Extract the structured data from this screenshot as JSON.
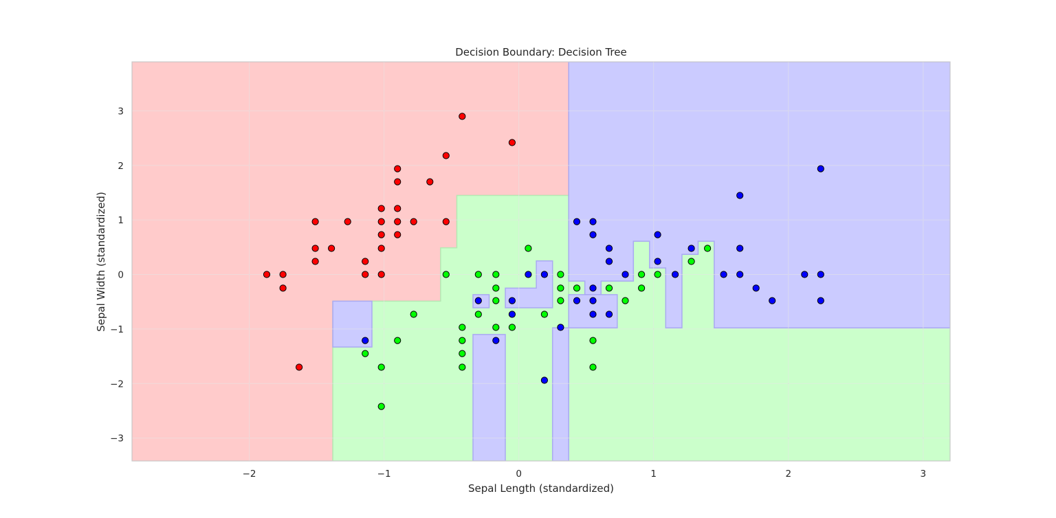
{
  "chart_data": {
    "type": "scatter",
    "title": "Decision Boundary: Decision Tree",
    "xlabel": "Sepal Length (standardized)",
    "ylabel": "Sepal Width (standardized)",
    "xlim": [
      -2.87,
      3.2
    ],
    "ylim": [
      -3.42,
      3.9
    ],
    "xticks": [
      -2,
      -1,
      0,
      1,
      2,
      3
    ],
    "yticks": [
      -3,
      -2,
      -1,
      0,
      1,
      2,
      3
    ],
    "xtick_labels": [
      "−2",
      "−1",
      "0",
      "1",
      "2",
      "3"
    ],
    "ytick_labels": [
      "−3",
      "−2",
      "−1",
      "0",
      "1",
      "2",
      "3"
    ],
    "grid": true,
    "colors": {
      "class0_region": "#ffcbcb",
      "class1_region": "#cbffcb",
      "class2_region": "#cbcbff",
      "class0_point": "#ff0000",
      "class1_point": "#00ff00",
      "class2_point": "#0000ff"
    },
    "regions": [
      {
        "class": 0,
        "polygon": [
          [
            -2.87,
            3.9
          ],
          [
            0.37,
            3.9
          ],
          [
            0.37,
            1.45
          ],
          [
            -0.46,
            1.45
          ],
          [
            -0.46,
            0.49
          ],
          [
            -0.58,
            0.49
          ],
          [
            -0.58,
            -0.49
          ],
          [
            -1.38,
            -0.49
          ],
          [
            -1.38,
            -3.42
          ],
          [
            -2.87,
            -3.42
          ]
        ]
      },
      {
        "class": 1,
        "polygon": [
          [
            -1.38,
            -3.42
          ],
          [
            -1.38,
            -0.49
          ],
          [
            -0.58,
            -0.49
          ],
          [
            -0.58,
            0.49
          ],
          [
            -0.46,
            0.49
          ],
          [
            -0.46,
            1.45
          ],
          [
            0.37,
            1.45
          ],
          [
            0.37,
            -3.42
          ]
        ]
      },
      {
        "class": 1,
        "polygon": [
          [
            0.37,
            -3.42
          ],
          [
            3.2,
            -3.42
          ],
          [
            3.2,
            -0.98
          ],
          [
            1.45,
            -0.98
          ],
          [
            1.45,
            0.61
          ],
          [
            1.33,
            0.61
          ],
          [
            1.33,
            0.37
          ],
          [
            1.21,
            0.37
          ],
          [
            1.21,
            -0.98
          ],
          [
            1.09,
            -0.98
          ],
          [
            1.09,
            0.12
          ],
          [
            0.97,
            0.12
          ],
          [
            0.97,
            0.61
          ],
          [
            0.85,
            0.61
          ],
          [
            0.85,
            -0.12
          ],
          [
            0.61,
            -0.12
          ],
          [
            0.61,
            -0.37
          ],
          [
            0.49,
            -0.37
          ],
          [
            0.49,
            -0.12
          ],
          [
            0.37,
            -0.12
          ]
        ]
      },
      {
        "class": 2,
        "polygon": [
          [
            0.37,
            3.9
          ],
          [
            3.2,
            3.9
          ],
          [
            3.2,
            -0.98
          ],
          [
            1.45,
            -0.98
          ],
          [
            1.45,
            0.61
          ],
          [
            1.33,
            0.61
          ],
          [
            1.33,
            0.37
          ],
          [
            1.21,
            0.37
          ],
          [
            1.21,
            -0.98
          ],
          [
            1.09,
            -0.98
          ],
          [
            1.09,
            0.12
          ],
          [
            0.97,
            0.12
          ],
          [
            0.97,
            0.61
          ],
          [
            0.85,
            0.61
          ],
          [
            0.85,
            -0.12
          ],
          [
            0.61,
            -0.12
          ],
          [
            0.61,
            -0.37
          ],
          [
            0.49,
            -0.37
          ],
          [
            0.49,
            -0.12
          ],
          [
            0.37,
            -0.12
          ]
        ]
      },
      {
        "class": 2,
        "polygon": [
          [
            0.61,
            -0.37
          ],
          [
            0.73,
            -0.37
          ],
          [
            0.73,
            -0.98
          ],
          [
            0.37,
            -0.98
          ],
          [
            0.37,
            -0.37
          ],
          [
            0.61,
            -0.37
          ]
        ]
      },
      {
        "class": 2,
        "polygon": [
          [
            0.25,
            -0.98
          ],
          [
            0.37,
            -0.98
          ],
          [
            0.37,
            -3.42
          ],
          [
            0.25,
            -3.42
          ]
        ]
      },
      {
        "class": 2,
        "polygon": [
          [
            -1.38,
            -0.49
          ],
          [
            -1.09,
            -0.49
          ],
          [
            -1.09,
            -1.33
          ],
          [
            -1.38,
            -1.33
          ]
        ]
      },
      {
        "class": 2,
        "polygon": [
          [
            -0.34,
            -3.42
          ],
          [
            -0.34,
            -1.1
          ],
          [
            -0.1,
            -1.1
          ],
          [
            -0.1,
            -3.42
          ]
        ]
      },
      {
        "class": 2,
        "polygon": [
          [
            -0.34,
            -0.37
          ],
          [
            -0.22,
            -0.37
          ],
          [
            -0.22,
            -0.61
          ],
          [
            -0.34,
            -0.61
          ]
        ]
      },
      {
        "class": 2,
        "polygon": [
          [
            -0.1,
            -0.25
          ],
          [
            0.13,
            -0.25
          ],
          [
            0.13,
            0.25
          ],
          [
            0.25,
            0.25
          ],
          [
            0.25,
            -0.61
          ],
          [
            -0.1,
            -0.61
          ]
        ]
      }
    ],
    "series": [
      {
        "class": 0,
        "points": [
          [
            -1.87,
            0.0
          ],
          [
            -1.75,
            0.0
          ],
          [
            -1.75,
            -0.25
          ],
          [
            -1.63,
            -1.7
          ],
          [
            -1.51,
            0.97
          ],
          [
            -1.51,
            0.48
          ],
          [
            -1.51,
            0.24
          ],
          [
            -1.39,
            0.48
          ],
          [
            -1.27,
            0.97
          ],
          [
            -1.14,
            0.24
          ],
          [
            -1.14,
            0.0
          ],
          [
            -1.02,
            1.21
          ],
          [
            -1.02,
            0.97
          ],
          [
            -1.02,
            0.73
          ],
          [
            -1.02,
            0.48
          ],
          [
            -1.02,
            0.0
          ],
          [
            -0.9,
            1.94
          ],
          [
            -0.9,
            1.7
          ],
          [
            -0.9,
            1.21
          ],
          [
            -0.9,
            0.97
          ],
          [
            -0.9,
            0.73
          ],
          [
            -0.78,
            0.97
          ],
          [
            -0.66,
            1.7
          ],
          [
            -0.54,
            2.18
          ],
          [
            -0.54,
            0.97
          ],
          [
            -0.42,
            2.9
          ],
          [
            -0.05,
            2.42
          ]
        ]
      },
      {
        "class": 1,
        "points": [
          [
            -1.14,
            -1.45
          ],
          [
            -1.02,
            -1.7
          ],
          [
            -1.02,
            -2.42
          ],
          [
            -0.9,
            -1.21
          ],
          [
            -0.78,
            -0.73
          ],
          [
            -0.54,
            0.0
          ],
          [
            -0.42,
            -0.97
          ],
          [
            -0.42,
            -1.21
          ],
          [
            -0.42,
            -1.45
          ],
          [
            -0.42,
            -1.7
          ],
          [
            -0.3,
            0.0
          ],
          [
            -0.3,
            -0.73
          ],
          [
            -0.17,
            0.0
          ],
          [
            -0.17,
            -0.25
          ],
          [
            -0.17,
            -0.48
          ],
          [
            -0.17,
            -0.97
          ],
          [
            -0.05,
            -0.97
          ],
          [
            0.07,
            0.48
          ],
          [
            0.19,
            -0.73
          ],
          [
            0.31,
            0.0
          ],
          [
            0.31,
            -0.25
          ],
          [
            0.31,
            -0.48
          ],
          [
            0.43,
            -0.25
          ],
          [
            0.55,
            -1.21
          ],
          [
            0.55,
            -1.7
          ],
          [
            0.67,
            -0.25
          ],
          [
            0.79,
            -0.48
          ],
          [
            0.91,
            0.0
          ],
          [
            0.91,
            -0.25
          ],
          [
            1.03,
            0.0
          ],
          [
            1.28,
            0.24
          ],
          [
            1.4,
            0.48
          ]
        ]
      },
      {
        "class": 2,
        "points": [
          [
            -1.14,
            -1.21
          ],
          [
            -0.3,
            -0.48
          ],
          [
            -0.17,
            -1.21
          ],
          [
            -0.05,
            -0.48
          ],
          [
            -0.05,
            -0.73
          ],
          [
            0.07,
            0.0
          ],
          [
            0.19,
            0.0
          ],
          [
            0.19,
            -1.94
          ],
          [
            0.31,
            -0.97
          ],
          [
            0.43,
            0.97
          ],
          [
            0.43,
            -0.48
          ],
          [
            0.55,
            0.97
          ],
          [
            0.55,
            0.73
          ],
          [
            0.55,
            -0.25
          ],
          [
            0.55,
            -0.48
          ],
          [
            0.55,
            -0.73
          ],
          [
            0.67,
            0.48
          ],
          [
            0.67,
            0.24
          ],
          [
            0.67,
            -0.73
          ],
          [
            0.79,
            0.0
          ],
          [
            1.03,
            0.73
          ],
          [
            1.03,
            0.24
          ],
          [
            1.16,
            0.0
          ],
          [
            1.28,
            0.48
          ],
          [
            1.52,
            0.0
          ],
          [
            1.64,
            1.45
          ],
          [
            1.64,
            0.48
          ],
          [
            1.64,
            0.0
          ],
          [
            1.76,
            -0.25
          ],
          [
            1.88,
            -0.48
          ],
          [
            2.12,
            0.0
          ],
          [
            2.24,
            1.94
          ],
          [
            2.24,
            0.0
          ],
          [
            2.24,
            -0.48
          ]
        ]
      }
    ]
  }
}
